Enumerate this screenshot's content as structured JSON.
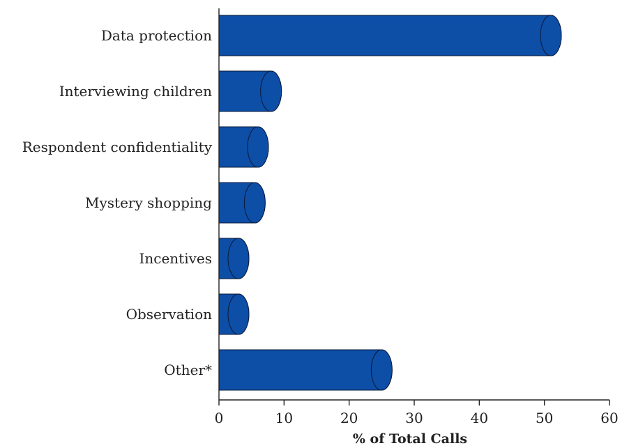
{
  "chart_data": {
    "type": "bar",
    "orientation": "horizontal",
    "categories": [
      "Data protection",
      "Interviewing children",
      "Respondent confidentiality",
      "Mystery shopping",
      "Incentives",
      "Observation",
      "Other*"
    ],
    "values": [
      51,
      8,
      6,
      5.5,
      3,
      3,
      25
    ],
    "xlabel": "% of Total Calls",
    "ylabel": "",
    "xlim": [
      0,
      60
    ],
    "xticks": [
      "0",
      "10",
      "20",
      "30",
      "40",
      "50",
      "60"
    ],
    "grid": false,
    "legend": "none",
    "bar_style": "cylinder",
    "colors": {
      "bar": "#0d4ea6",
      "outline": "#0a1a3a",
      "text": "#222222"
    }
  }
}
